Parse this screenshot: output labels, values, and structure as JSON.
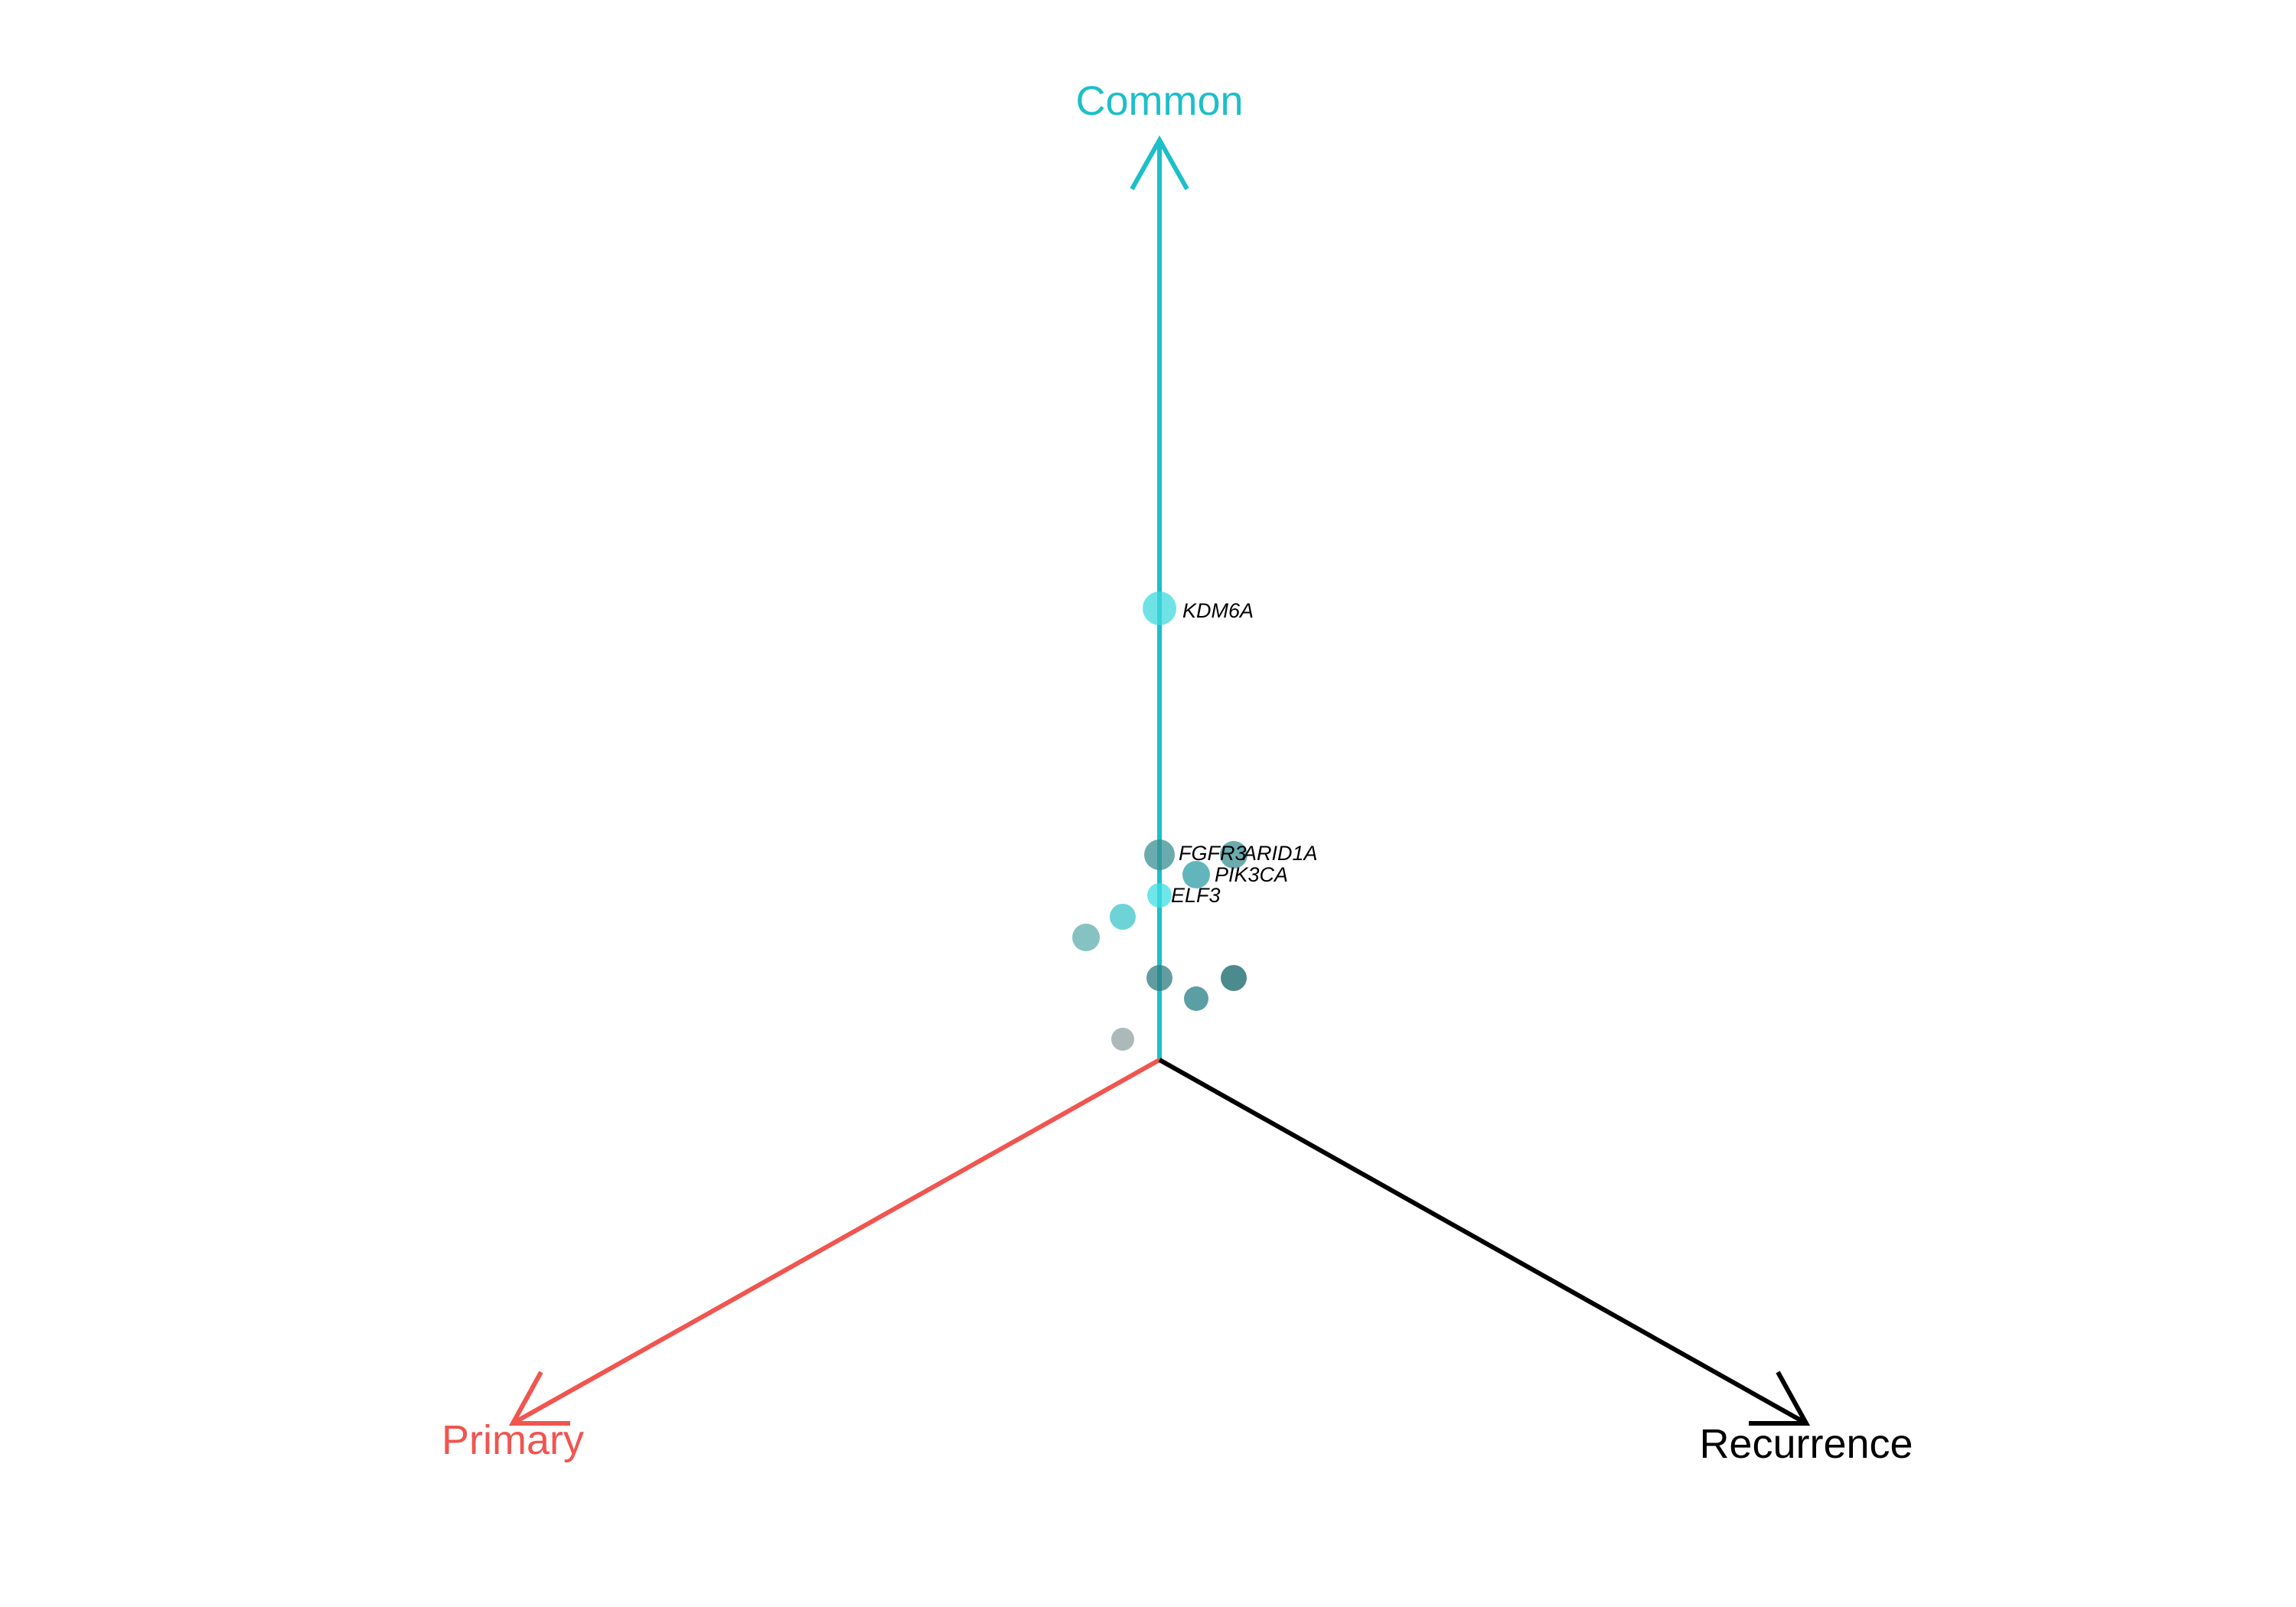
{
  "chart_data": {
    "type": "scatter",
    "title": "",
    "axes": [
      {
        "name": "Common",
        "color": "#1DBFC8"
      },
      {
        "name": "Primary",
        "color": "#F05550"
      },
      {
        "name": "Recurrence",
        "color": "#000000"
      }
    ],
    "points": [
      {
        "gene": "KDM6A",
        "color": "#3FD8DE"
      },
      {
        "gene": "FGFR3",
        "color": "#3A8F93"
      },
      {
        "gene": "ARID1A",
        "color": "#3A8F93"
      },
      {
        "gene": "PIK3CA",
        "color": "#2E9EA4"
      },
      {
        "gene": "ELF3",
        "color": "#3FDDE3"
      },
      {
        "gene": "",
        "color": "#3CC4C8"
      },
      {
        "gene": "",
        "color": "#5FADAE"
      },
      {
        "gene": "",
        "color": "#2F7B80"
      },
      {
        "gene": "",
        "color": "#247F86"
      },
      {
        "gene": "",
        "color": "#0F6468"
      },
      {
        "gene": "",
        "color": "#8FA3A2"
      }
    ]
  }
}
